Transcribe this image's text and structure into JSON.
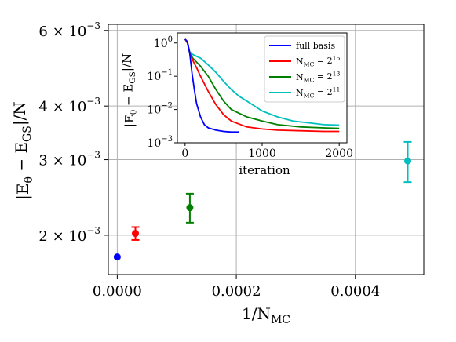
{
  "chart_data": [
    {
      "type": "scatter",
      "title": "",
      "xlabel": "1/N_MC",
      "ylabel": "|E_θ − E_GS|/N",
      "x_scale": "linear",
      "y_scale": "log",
      "xlim": [
        -1.5e-05,
        0.000515
      ],
      "ylim": [
        0.00162,
        0.0062
      ],
      "grid": true,
      "x_ticks": [
        {
          "value": 0.0,
          "label": "0.0000"
        },
        {
          "value": 0.0002,
          "label": "0.0002"
        },
        {
          "value": 0.0004,
          "label": "0.0004"
        }
      ],
      "y_ticks": [
        {
          "value": 0.002,
          "label": "2 × 10",
          "exp": "−3"
        },
        {
          "value": 0.003,
          "label": "3 × 10",
          "exp": "−3"
        },
        {
          "value": 0.004,
          "label": "4 × 10",
          "exp": "−3"
        },
        {
          "value": 0.006,
          "label": "6 × 10",
          "exp": "−3"
        }
      ],
      "points": [
        {
          "x": 0.0,
          "y": 0.00178,
          "err": 2e-05,
          "color": "#0000ff"
        },
        {
          "x": 3.05e-05,
          "y": 0.00202,
          "err": 7e-05,
          "color": "#ff0000"
        },
        {
          "x": 0.000122,
          "y": 0.00232,
          "err": 0.00018,
          "color": "#008000"
        },
        {
          "x": 0.000488,
          "y": 0.00298,
          "err": 0.00032,
          "color": "#00bfbf"
        }
      ]
    },
    {
      "type": "line",
      "title": "",
      "xlabel": "iteration",
      "ylabel": "|E_θ − E_GS|/N",
      "x_scale": "linear",
      "y_scale": "log",
      "xlim": [
        -100,
        2100
      ],
      "ylim": [
        0.001,
        2.0
      ],
      "legend_position": "top-right",
      "x_ticks": [
        {
          "value": 0,
          "label": "0"
        },
        {
          "value": 1000,
          "label": "1000"
        },
        {
          "value": 2000,
          "label": "2000"
        }
      ],
      "y_ticks": [
        {
          "value": 1,
          "label": "10",
          "exp": "0"
        },
        {
          "value": 0.1,
          "label": "10",
          "exp": "−1"
        },
        {
          "value": 0.01,
          "label": "10",
          "exp": "−2"
        },
        {
          "value": 0.001,
          "label": "10",
          "exp": "−3"
        }
      ],
      "series": [
        {
          "name": "full basis",
          "color": "#0000ff",
          "x": [
            0,
            30,
            60,
            90,
            120,
            150,
            200,
            250,
            300,
            400,
            500,
            600,
            700
          ],
          "y": [
            1.3,
            1.1,
            0.5,
            0.12,
            0.04,
            0.015,
            0.006,
            0.0035,
            0.0028,
            0.0024,
            0.0022,
            0.0021,
            0.0021
          ]
        },
        {
          "name": "N_MC = 2^15",
          "color": "#ff0000",
          "x": [
            0,
            30,
            60,
            100,
            150,
            200,
            300,
            400,
            500,
            600,
            800,
            1000,
            1200,
            1500,
            1800,
            2000
          ],
          "y": [
            1.3,
            1.0,
            0.5,
            0.3,
            0.18,
            0.1,
            0.035,
            0.014,
            0.007,
            0.0045,
            0.003,
            0.0026,
            0.0024,
            0.0023,
            0.0022,
            0.0022
          ]
        },
        {
          "name": "N_MC = 2^13",
          "color": "#008000",
          "x": [
            0,
            30,
            60,
            100,
            200,
            300,
            400,
            500,
            600,
            800,
            1000,
            1200,
            1500,
            1800,
            2000
          ],
          "y": [
            1.3,
            1.0,
            0.5,
            0.35,
            0.2,
            0.1,
            0.04,
            0.018,
            0.01,
            0.006,
            0.0045,
            0.0035,
            0.003,
            0.0028,
            0.0027
          ]
        },
        {
          "name": "N_MC = 2^11",
          "color": "#00bfbf",
          "x": [
            0,
            30,
            60,
            100,
            200,
            300,
            400,
            500,
            600,
            700,
            800,
            1000,
            1200,
            1400,
            1600,
            1800,
            2000
          ],
          "y": [
            1.3,
            1.0,
            0.55,
            0.45,
            0.35,
            0.22,
            0.13,
            0.07,
            0.04,
            0.025,
            0.018,
            0.009,
            0.006,
            0.0045,
            0.004,
            0.0035,
            0.0034
          ]
        }
      ]
    }
  ]
}
